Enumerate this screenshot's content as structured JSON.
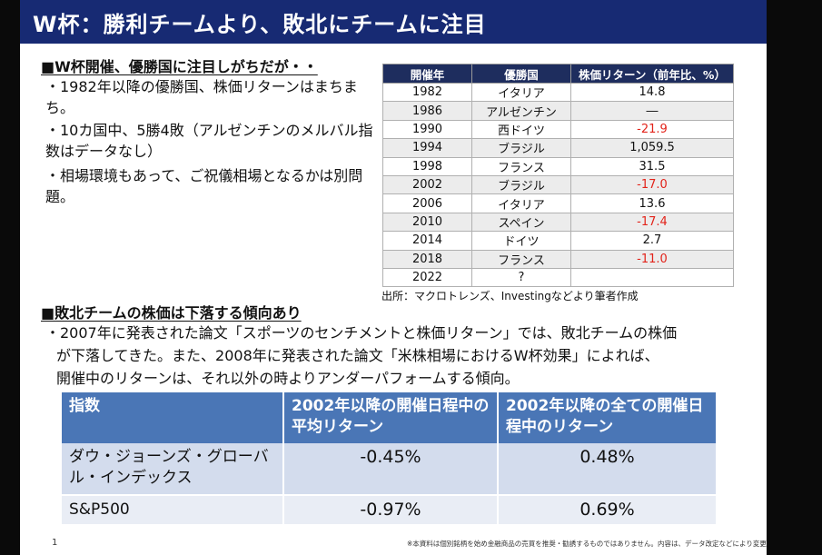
{
  "title": "W杯：勝利チームより、敗北にチームに注目",
  "section1": {
    "heading": "■W杯開催、優勝国に注目しがちだが・・",
    "bullets": [
      "・1982年以降の優勝国、株価リターンはまちまち。",
      "・10カ国中、5勝4敗（アルゼンチンのメルバル指数はデータなし）",
      "・相場環境もあって、ご祝儀相場となるかは別問題。"
    ]
  },
  "champions_table": {
    "headers": [
      "開催年",
      "優勝国",
      "株価リターン（前年比、%）"
    ],
    "rows": [
      {
        "year": "1982",
        "country": "イタリア",
        "return": "14.8"
      },
      {
        "year": "1986",
        "country": "アルゼンチン",
        "return": "―"
      },
      {
        "year": "1990",
        "country": "西ドイツ",
        "return": "-21.9"
      },
      {
        "year": "1994",
        "country": "ブラジル",
        "return": "1,059.5"
      },
      {
        "year": "1998",
        "country": "フランス",
        "return": "31.5"
      },
      {
        "year": "2002",
        "country": "ブラジル",
        "return": "-17.0"
      },
      {
        "year": "2006",
        "country": "イタリア",
        "return": "13.6"
      },
      {
        "year": "2010",
        "country": "スペイン",
        "return": "-17.4"
      },
      {
        "year": "2014",
        "country": "ドイツ",
        "return": "2.7"
      },
      {
        "year": "2018",
        "country": "フランス",
        "return": "-11.0"
      },
      {
        "year": "2022",
        "country": "?",
        "return": ""
      }
    ],
    "negative_color": "#e2231a",
    "source": "出所：マクロトレンズ、Investingなどより筆者作成"
  },
  "section2": {
    "heading": "■敗北チームの株価は下落する傾向あり",
    "lines": [
      "・2007年に発表された論文「スポーツのセンチメントと株価リターン」では、敗北チームの株価",
      "が下落してきた。また、2008年に発表された論文「米株相場におけるW杯効果」によれば、",
      "開催中のリターンは、それ以外の時よりアンダーパフォームする傾向。"
    ]
  },
  "performance_table": {
    "headers": [
      "指数",
      "2002年以降の開催日程中の平均リターン",
      "2002年以降の全ての開催日程中のリターン"
    ],
    "rows": [
      {
        "index": "ダウ・ジョーンズ・グローバル・インデックス",
        "avg": "-0.45%",
        "all": "0.48%"
      },
      {
        "index": "S&P500",
        "avg": "-0.97%",
        "all": "0.69%"
      }
    ]
  },
  "page_number": "1",
  "footnote": "※本資料は個別銘柄を始め金融商品の売買を推奨・勧誘するものではありません。内容は、データ改定などにより変更となる場合があります。",
  "colors": {
    "title_bar": "#172a73",
    "table_header": "#1e2d5e",
    "perf_header": "#4a76b6"
  }
}
